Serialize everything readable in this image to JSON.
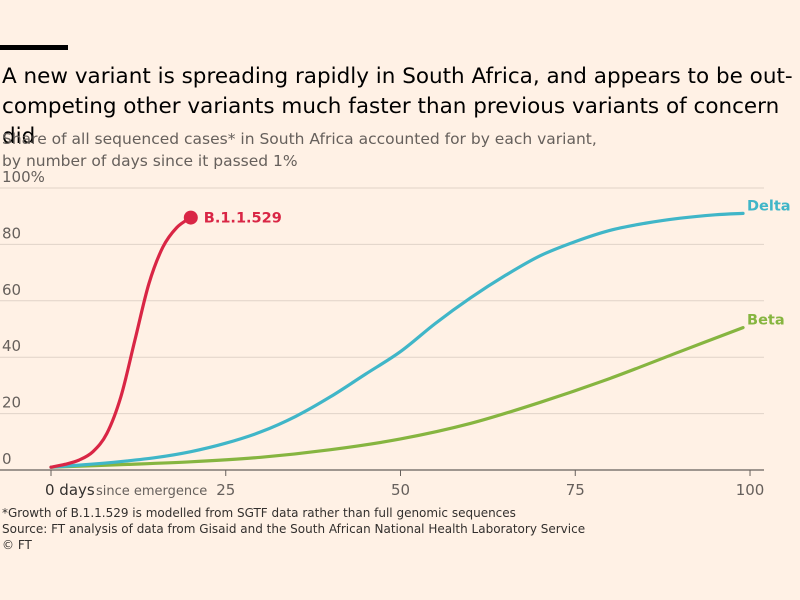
{
  "title": "A new variant is spreading rapidly in South Africa, and appears to be out-competing other variants much faster than previous variants of concern did",
  "subtitle_line1": "Share of all sequenced cases* in South Africa accounted for by each variant,",
  "subtitle_line2": "by number of days since it passed 1%",
  "footnote_line1": "*Growth of B.1.1.529 is modelled from SGTF data rather than full genomic sequences",
  "footnote_line2": "Source: FT analysis of data from Gisaid and the South African National Health Laboratory Service",
  "footnote_line3": "© FT",
  "chart_data": {
    "type": "line",
    "title": "A new variant is spreading rapidly in South Africa, and appears to be out-competing other variants much faster than previous variants of concern did",
    "xlabel": "0 days since emergence",
    "x_tick_labels": [
      "0 days",
      "25",
      "50",
      "75",
      "100"
    ],
    "x_ticks": [
      0,
      25,
      50,
      75,
      100
    ],
    "x_tick_suffix": "since emergence",
    "y_tick_labels": [
      "0",
      "20",
      "40",
      "60",
      "80",
      "100%"
    ],
    "y_ticks": [
      0,
      20,
      40,
      60,
      80,
      100
    ],
    "xlim": [
      -1,
      102
    ],
    "ylim": [
      0,
      100
    ],
    "grid": true,
    "legend": "direct labels at line ends",
    "series": [
      {
        "name": "B.1.1.529",
        "color": "#d92645",
        "end_marker": true,
        "x": [
          0,
          2,
          4,
          6,
          8,
          10,
          12,
          14,
          16,
          18,
          20
        ],
        "y": [
          1,
          2,
          3.5,
          6.5,
          13,
          26,
          46,
          66,
          79,
          86,
          89.5
        ]
      },
      {
        "name": "Delta",
        "color": "#40b6c8",
        "end_marker": false,
        "x": [
          0,
          5,
          10,
          15,
          20,
          25,
          30,
          35,
          40,
          45,
          50,
          55,
          60,
          65,
          70,
          75,
          80,
          85,
          90,
          95,
          99
        ],
        "y": [
          1,
          1.9,
          3,
          4.4,
          6.5,
          9.5,
          13.5,
          19,
          26,
          34,
          42,
          52,
          61,
          69,
          76,
          81,
          85,
          87.5,
          89.3,
          90.5,
          91
        ]
      },
      {
        "name": "Beta",
        "color": "#86b540",
        "end_marker": false,
        "x": [
          0,
          10,
          20,
          30,
          40,
          50,
          60,
          70,
          80,
          90,
          99
        ],
        "y": [
          1,
          1.9,
          2.9,
          4.5,
          7.2,
          11,
          16.5,
          24,
          32.5,
          42,
          50.5
        ]
      }
    ]
  }
}
